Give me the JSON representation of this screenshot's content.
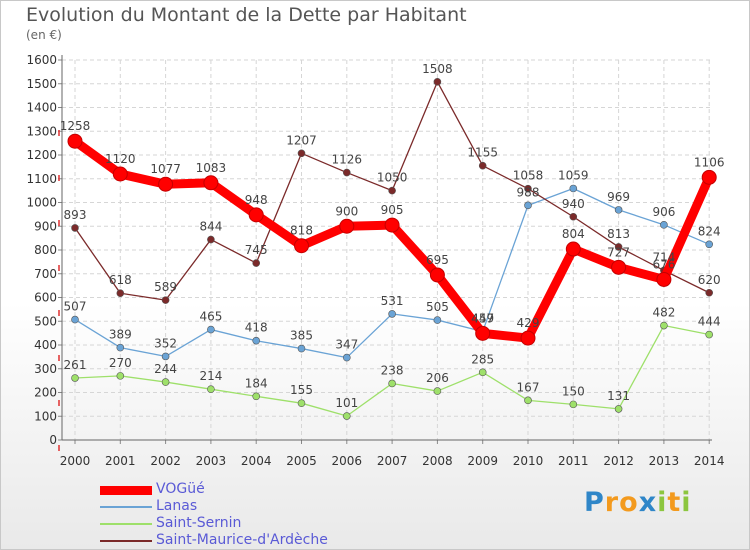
{
  "title": "Evolution du Montant de la Dette par Habitant",
  "unit": "(en €)",
  "chart_data": {
    "type": "line",
    "x": [
      "2000",
      "2001",
      "2002",
      "2003",
      "2004",
      "2005",
      "2006",
      "2007",
      "2008",
      "2009",
      "2010",
      "2011",
      "2012",
      "2013",
      "2014"
    ],
    "ylim": [
      0,
      1600
    ],
    "yticks": [
      "0",
      "100",
      "200",
      "300",
      "400",
      "500",
      "600",
      "700",
      "800",
      "900",
      "1000",
      "1100",
      "1200",
      "1300",
      "1400",
      "1500",
      "1600"
    ],
    "grid": true,
    "legend_position": "bottom-left",
    "series": [
      {
        "name": "VOGüé",
        "color": "#ff0000",
        "values": [
          1258,
          1120,
          1077,
          1083,
          948,
          818,
          900,
          905,
          695,
          449,
          429,
          804,
          727,
          676,
          1106
        ],
        "labels": [
          "1258",
          "1120",
          "1077",
          "1083",
          "948",
          "818",
          "900",
          "905",
          "695",
          "449",
          "429",
          "804",
          "727",
          "676",
          "1106"
        ]
      },
      {
        "name": "Lanas",
        "color": "#6aa3d5",
        "values": [
          507,
          389,
          352,
          465,
          418,
          385,
          347,
          531,
          505,
          457,
          988,
          1059,
          969,
          906,
          824
        ],
        "labels": [
          "507",
          "389",
          "352",
          "465",
          "418",
          "385",
          "347",
          "531",
          "505",
          "457",
          "988",
          "1059",
          "969",
          "906",
          "824"
        ]
      },
      {
        "name": "Saint-Sernin",
        "color": "#9ee06a",
        "values": [
          261,
          270,
          244,
          214,
          184,
          155,
          101,
          238,
          206,
          285,
          167,
          150,
          131,
          482,
          444
        ],
        "labels": [
          "261",
          "270",
          "244",
          "214",
          "184",
          "155",
          "101",
          "238",
          "206",
          "285",
          "167",
          "150",
          "131",
          "482",
          "444"
        ]
      },
      {
        "name": "Saint-Maurice-d'Ardèche",
        "color": "#7b2a2a",
        "values": [
          893,
          618,
          589,
          844,
          745,
          1207,
          1126,
          1050,
          1508,
          1155,
          1058,
          940,
          813,
          714,
          620
        ],
        "labels": [
          "893",
          "618",
          "589",
          "844",
          "745",
          "1207",
          "1126",
          "1050",
          "1508",
          "1155",
          "1058",
          "940",
          "813",
          "714",
          "620"
        ]
      }
    ]
  },
  "logo": {
    "p": "P",
    "r": "r",
    "o": "o",
    "x": "x",
    "i": "i",
    "t": "t",
    "i2": "i"
  }
}
